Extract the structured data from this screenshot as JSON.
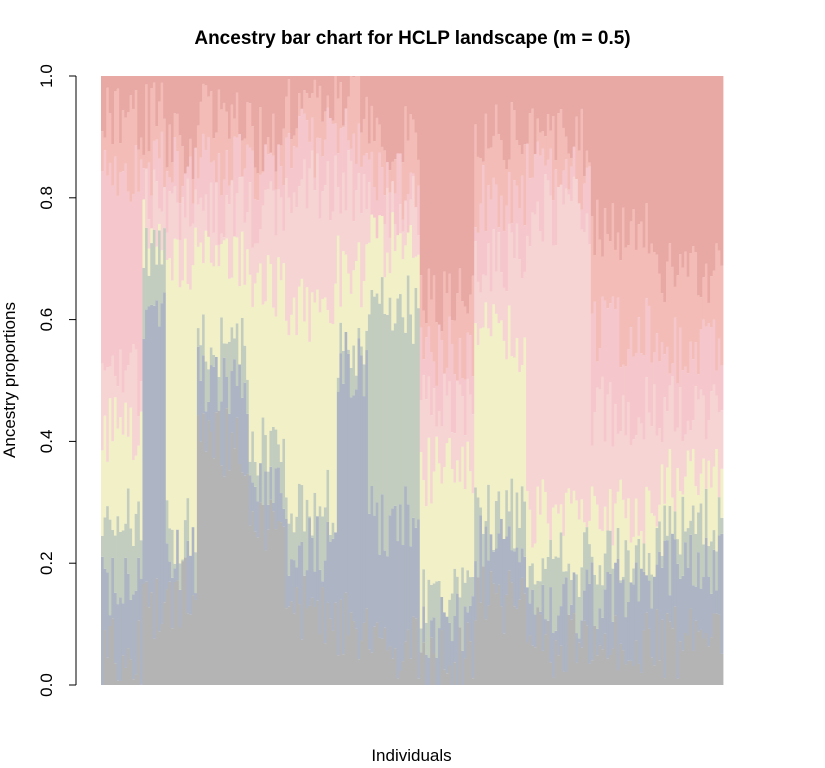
{
  "chart_data": {
    "type": "bar",
    "subtype": "stacked-proportions",
    "title": "Ancestry bar chart for HCLP landscape (m = 0.5)",
    "xlabel": "Individuals",
    "ylabel": "Ancestry proportions",
    "ylim": [
      0,
      1
    ],
    "yticks": [
      "0.0",
      "0.2",
      "0.4",
      "0.6",
      "0.8",
      "1.0"
    ],
    "grid": false,
    "legend": "none",
    "n_individuals": 240,
    "colors": [
      "#b4b4b4",
      "#adb4c3",
      "#c3cdbf",
      "#f2f0c6",
      "#f6d4d4",
      "#f5c7cc",
      "#f3bcb6",
      "#e8a8a4"
    ],
    "clusters": [
      {
        "n": 16,
        "cum": [
          0.06,
          0.16,
          0.27,
          0.42,
          0.5,
          0.84,
          0.93
        ]
      },
      {
        "n": 9,
        "cum": [
          0.12,
          0.6,
          0.7,
          0.75,
          0.8,
          0.85,
          0.93
        ]
      },
      {
        "n": 12,
        "cum": [
          0.15,
          0.2,
          0.25,
          0.7,
          0.78,
          0.85,
          0.89
        ]
      },
      {
        "n": 20,
        "cum": [
          0.4,
          0.5,
          0.55,
          0.7,
          0.78,
          0.85,
          0.93
        ]
      },
      {
        "n": 14,
        "cum": [
          0.26,
          0.32,
          0.38,
          0.66,
          0.77,
          0.85,
          0.9
        ]
      },
      {
        "n": 20,
        "cum": [
          0.12,
          0.22,
          0.3,
          0.62,
          0.82,
          0.89,
          0.95
        ]
      },
      {
        "n": 12,
        "cum": [
          0.1,
          0.52,
          0.56,
          0.68,
          0.82,
          0.9,
          0.96
        ]
      },
      {
        "n": 20,
        "cum": [
          0.07,
          0.27,
          0.62,
          0.72,
          0.78,
          0.82,
          0.9
        ]
      },
      {
        "n": 21,
        "cum": [
          0.05,
          0.1,
          0.15,
          0.35,
          0.46,
          0.55,
          0.63
        ]
      },
      {
        "n": 20,
        "cum": [
          0.14,
          0.22,
          0.28,
          0.57,
          0.7,
          0.8,
          0.9
        ]
      },
      {
        "n": 25,
        "cum": [
          0.07,
          0.13,
          0.2,
          0.28,
          0.78,
          0.84,
          0.89
        ]
      },
      {
        "n": 26,
        "cum": [
          0.07,
          0.15,
          0.2,
          0.28,
          0.45,
          0.58,
          0.75
        ]
      },
      {
        "n": 25,
        "cum": [
          0.07,
          0.2,
          0.27,
          0.33,
          0.45,
          0.55,
          0.67
        ]
      }
    ]
  }
}
